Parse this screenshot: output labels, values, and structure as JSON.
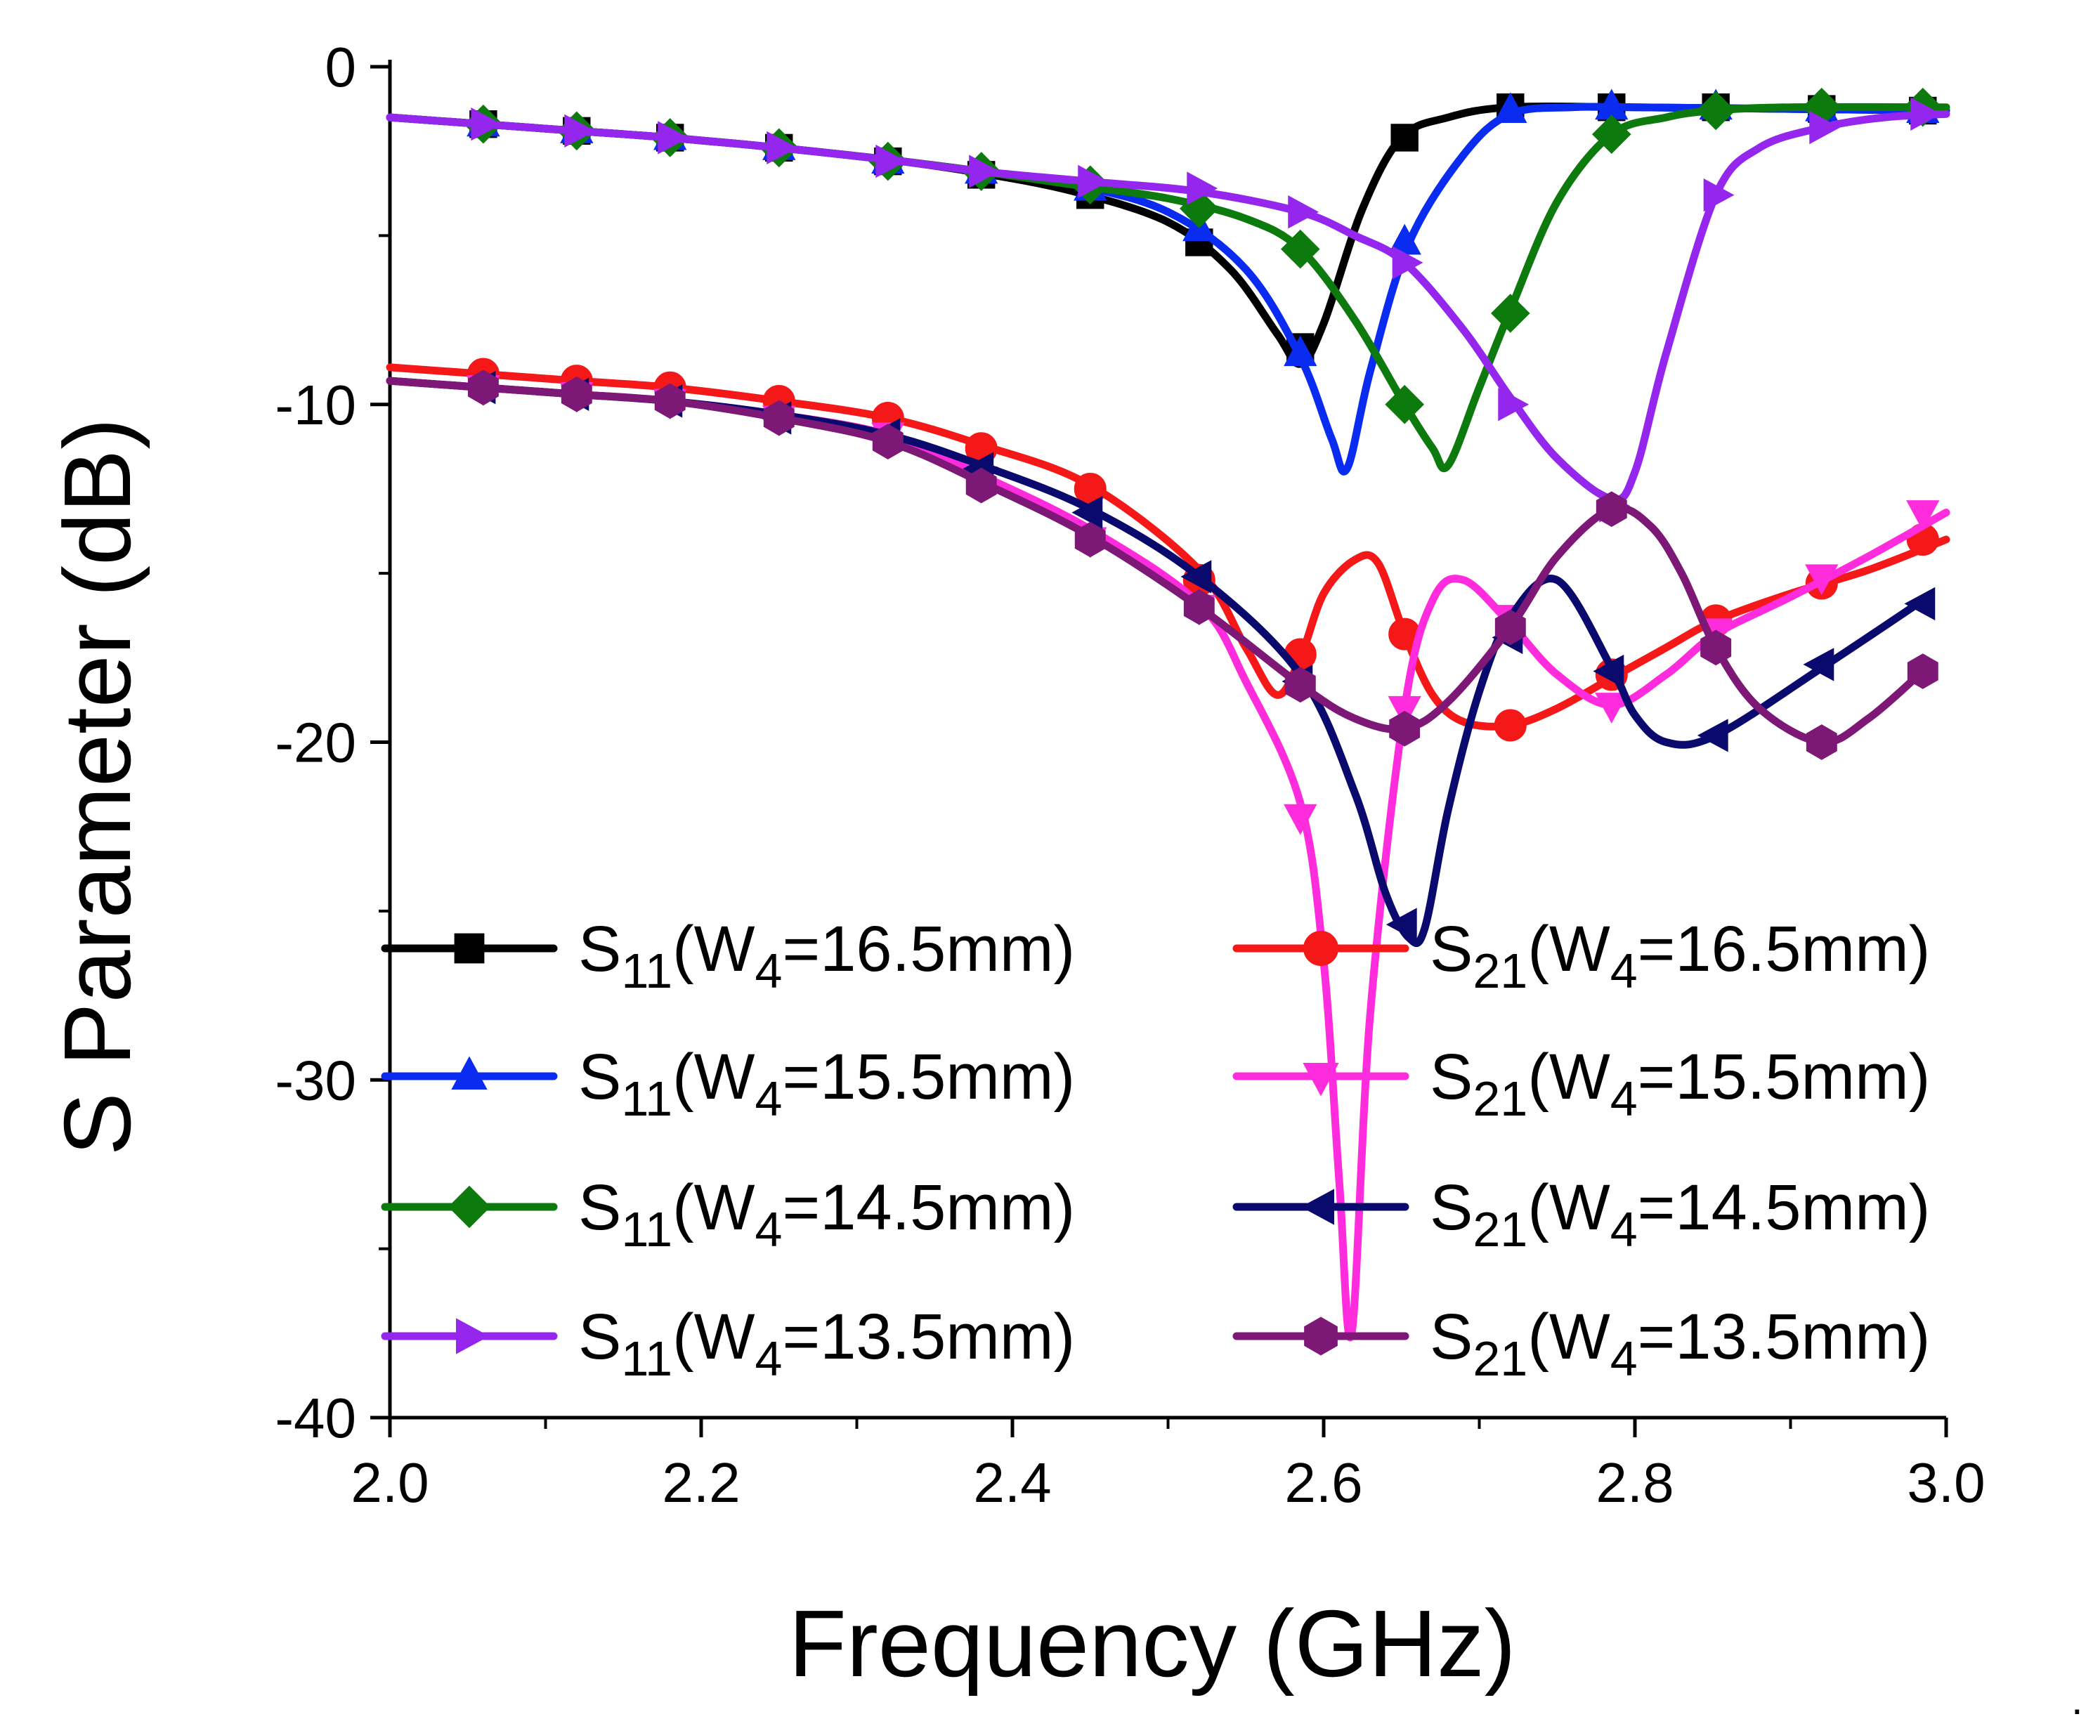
{
  "chart_data": {
    "type": "line",
    "xlabel": "Frequency (GHz)",
    "ylabel": "S Parameter (dB)",
    "xlim": [
      2.0,
      3.0
    ],
    "ylim": [
      -40,
      0
    ],
    "xticks": [
      2.0,
      2.2,
      2.4,
      2.6,
      2.8,
      3.0
    ],
    "xtick_labels": [
      "2.0",
      "2.2",
      "2.4",
      "2.6",
      "2.8",
      "3.0"
    ],
    "yticks": [
      0,
      -10,
      -20,
      -30,
      -40
    ],
    "ytick_labels": [
      "0",
      "-10",
      "-20",
      "-30",
      "-40"
    ],
    "grid": false,
    "legend_position": "bottom-center, two columns",
    "trailing_mark": ".",
    "series": [
      {
        "legend": {
          "main": "S",
          "sub": "11",
          "mid": "(W",
          "sub2": "4",
          "rest": "=16.5mm)"
        },
        "color": "#000000",
        "marker": "square",
        "x": [
          2.0,
          2.06,
          2.12,
          2.18,
          2.25,
          2.32,
          2.38,
          2.44,
          2.5,
          2.54,
          2.57,
          2.585,
          2.6,
          2.625,
          2.65,
          2.68,
          2.72,
          2.8,
          2.9,
          3.0
        ],
        "y": [
          -1.5,
          -1.7,
          -1.9,
          -2.1,
          -2.4,
          -2.75,
          -3.15,
          -3.7,
          -4.6,
          -6.0,
          -7.9,
          -8.8,
          -7.6,
          -4.2,
          -2.1,
          -1.5,
          -1.2,
          -1.2,
          -1.25,
          -1.3
        ],
        "marker_x": [
          2.06,
          2.12,
          2.18,
          2.25,
          2.32,
          2.38,
          2.45,
          2.52,
          2.585,
          2.652,
          2.72,
          2.785,
          2.852,
          2.92,
          2.985
        ],
        "marker_y": [
          -1.7,
          -1.9,
          -2.1,
          -2.4,
          -2.8,
          -3.2,
          -3.8,
          -5.2,
          -8.3,
          -2.1,
          -1.2,
          -1.2,
          -1.2,
          -1.25,
          -1.3
        ]
      },
      {
        "legend": {
          "main": "S",
          "sub": "11",
          "mid": "(W",
          "sub2": "4",
          "rest": "=15.5mm)"
        },
        "color": "#0a2cf0",
        "marker": "triangle-up",
        "x": [
          2.0,
          2.06,
          2.12,
          2.18,
          2.25,
          2.32,
          2.38,
          2.44,
          2.5,
          2.55,
          2.585,
          2.605,
          2.615,
          2.63,
          2.655,
          2.69,
          2.72,
          2.76,
          2.8,
          2.9,
          3.0
        ],
        "y": [
          -1.5,
          -1.7,
          -1.9,
          -2.1,
          -2.4,
          -2.75,
          -3.1,
          -3.5,
          -4.3,
          -6.0,
          -8.6,
          -11.0,
          -11.9,
          -9.0,
          -5.2,
          -2.6,
          -1.4,
          -1.2,
          -1.2,
          -1.25,
          -1.3
        ],
        "marker_x": [
          2.06,
          2.12,
          2.18,
          2.25,
          2.32,
          2.38,
          2.45,
          2.52,
          2.585,
          2.652,
          2.72,
          2.785,
          2.852,
          2.92,
          2.985
        ],
        "marker_y": [
          -1.7,
          -1.9,
          -2.1,
          -2.4,
          -2.8,
          -3.1,
          -3.6,
          -4.8,
          -8.5,
          -5.2,
          -1.3,
          -1.2,
          -1.2,
          -1.25,
          -1.3
        ]
      },
      {
        "legend": {
          "main": "S",
          "sub": "11",
          "mid": "(W",
          "sub2": "4",
          "rest": "=14.5mm)"
        },
        "color": "#0d7a0d",
        "marker": "diamond",
        "x": [
          2.0,
          2.06,
          2.12,
          2.18,
          2.25,
          2.32,
          2.38,
          2.44,
          2.5,
          2.55,
          2.585,
          2.62,
          2.652,
          2.67,
          2.68,
          2.7,
          2.72,
          2.75,
          2.785,
          2.82,
          2.85,
          2.9,
          3.0
        ],
        "y": [
          -1.5,
          -1.7,
          -1.9,
          -2.1,
          -2.4,
          -2.75,
          -3.1,
          -3.5,
          -3.9,
          -4.5,
          -5.4,
          -7.5,
          -10.0,
          -11.3,
          -11.8,
          -9.5,
          -7.2,
          -4.0,
          -2.0,
          -1.5,
          -1.3,
          -1.2,
          -1.2
        ],
        "marker_x": [
          2.06,
          2.12,
          2.18,
          2.25,
          2.32,
          2.38,
          2.45,
          2.52,
          2.585,
          2.652,
          2.72,
          2.785,
          2.852,
          2.92,
          2.985
        ],
        "marker_y": [
          -1.7,
          -1.9,
          -2.1,
          -2.4,
          -2.8,
          -3.1,
          -3.5,
          -4.2,
          -5.4,
          -10.0,
          -7.3,
          -2.0,
          -1.3,
          -1.2,
          -1.2
        ]
      },
      {
        "legend": {
          "main": "S",
          "sub": "11",
          "mid": "(W",
          "sub2": "4",
          "rest": "=13.5mm)"
        },
        "color": "#9526ee",
        "marker": "triangle-right",
        "x": [
          2.0,
          2.06,
          2.12,
          2.18,
          2.25,
          2.32,
          2.38,
          2.45,
          2.52,
          2.585,
          2.62,
          2.652,
          2.69,
          2.72,
          2.75,
          2.785,
          2.8,
          2.82,
          2.852,
          2.88,
          2.92,
          2.96,
          3.0
        ],
        "y": [
          -1.5,
          -1.7,
          -1.9,
          -2.1,
          -2.4,
          -2.75,
          -3.1,
          -3.4,
          -3.7,
          -4.3,
          -5.0,
          -5.8,
          -7.8,
          -9.8,
          -11.6,
          -12.8,
          -12.0,
          -8.5,
          -3.8,
          -2.4,
          -1.8,
          -1.5,
          -1.4
        ],
        "marker_x": [
          2.06,
          2.12,
          2.18,
          2.25,
          2.32,
          2.38,
          2.45,
          2.52,
          2.585,
          2.652,
          2.72,
          2.785,
          2.852,
          2.92,
          2.985
        ],
        "marker_y": [
          -1.7,
          -1.9,
          -2.1,
          -2.4,
          -2.8,
          -3.1,
          -3.4,
          -3.6,
          -4.3,
          -5.8,
          -10.0,
          -13.0,
          -3.8,
          -1.8,
          -1.4
        ]
      },
      {
        "legend": {
          "main": "S",
          "sub": "21",
          "mid": "(W",
          "sub2": "4",
          "rest": "=16.5mm)"
        },
        "color": "#f41818",
        "marker": "circle",
        "x": [
          2.0,
          2.06,
          2.12,
          2.18,
          2.25,
          2.32,
          2.38,
          2.45,
          2.52,
          2.55,
          2.57,
          2.585,
          2.6,
          2.62,
          2.635,
          2.652,
          2.67,
          2.69,
          2.72,
          2.75,
          2.785,
          2.82,
          2.852,
          2.9,
          2.95,
          3.0
        ],
        "y": [
          -8.9,
          -9.1,
          -9.3,
          -9.5,
          -9.9,
          -10.4,
          -11.2,
          -12.4,
          -14.9,
          -17.2,
          -18.6,
          -17.5,
          -15.6,
          -14.6,
          -14.7,
          -16.8,
          -18.6,
          -19.4,
          -19.5,
          -19.0,
          -18.1,
          -17.2,
          -16.4,
          -15.6,
          -14.9,
          -14.0
        ],
        "marker_x": [
          2.06,
          2.12,
          2.18,
          2.25,
          2.32,
          2.38,
          2.45,
          2.52,
          2.585,
          2.652,
          2.72,
          2.785,
          2.852,
          2.92,
          2.985
        ],
        "marker_y": [
          -9.1,
          -9.3,
          -9.5,
          -9.9,
          -10.4,
          -11.3,
          -12.5,
          -15.2,
          -17.4,
          -16.8,
          -19.5,
          -18.0,
          -16.4,
          -15.3,
          -14.0
        ]
      },
      {
        "legend": {
          "main": "S",
          "sub": "21",
          "mid": "(W",
          "sub2": "4",
          "rest": "=15.5mm)"
        },
        "color": "#ff2cde",
        "marker": "triangle-down",
        "x": [
          2.0,
          2.06,
          2.12,
          2.18,
          2.25,
          2.32,
          2.38,
          2.45,
          2.52,
          2.55,
          2.585,
          2.6,
          2.61,
          2.618,
          2.63,
          2.652,
          2.67,
          2.69,
          2.72,
          2.75,
          2.785,
          2.82,
          2.852,
          2.9,
          2.95,
          3.0
        ],
        "y": [
          -9.3,
          -9.5,
          -9.7,
          -9.9,
          -10.3,
          -10.9,
          -12.1,
          -13.7,
          -15.9,
          -18.2,
          -21.8,
          -26.5,
          -33.0,
          -37.5,
          -28.0,
          -19.0,
          -15.8,
          -15.2,
          -16.5,
          -18.0,
          -18.9,
          -18.0,
          -16.8,
          -15.7,
          -14.5,
          -13.2
        ],
        "marker_x": [
          2.06,
          2.12,
          2.18,
          2.25,
          2.32,
          2.38,
          2.45,
          2.52,
          2.585,
          2.652,
          2.72,
          2.785,
          2.852,
          2.92,
          2.985
        ],
        "marker_y": [
          -9.5,
          -9.7,
          -9.9,
          -10.4,
          -10.9,
          -12.2,
          -14.0,
          -16.0,
          -22.2,
          -19.0,
          -16.3,
          -18.9,
          -16.7,
          -15.1,
          -13.2
        ]
      },
      {
        "legend": {
          "main": "S",
          "sub": "21",
          "mid": "(W",
          "sub2": "4",
          "rest": "=14.5mm)"
        },
        "color": "#0a0a6e",
        "marker": "triangle-left",
        "x": [
          2.0,
          2.06,
          2.12,
          2.18,
          2.25,
          2.32,
          2.38,
          2.45,
          2.52,
          2.585,
          2.62,
          2.64,
          2.655,
          2.665,
          2.68,
          2.7,
          2.72,
          2.75,
          2.785,
          2.8,
          2.82,
          2.852,
          2.92,
          2.985
        ],
        "y": [
          -9.3,
          -9.5,
          -9.7,
          -9.9,
          -10.3,
          -10.9,
          -11.8,
          -13.1,
          -15.1,
          -18.0,
          -21.5,
          -24.5,
          -25.8,
          -25.5,
          -22.0,
          -18.5,
          -16.3,
          -15.2,
          -17.8,
          -19.2,
          -20.0,
          -19.8,
          -17.8,
          -15.8
        ],
        "marker_x": [
          2.06,
          2.12,
          2.18,
          2.25,
          2.32,
          2.38,
          2.45,
          2.52,
          2.585,
          2.652,
          2.72,
          2.785,
          2.852,
          2.92,
          2.985
        ],
        "marker_y": [
          -9.5,
          -9.7,
          -9.9,
          -10.4,
          -10.9,
          -11.9,
          -13.2,
          -15.1,
          -18.2,
          -25.4,
          -16.9,
          -17.9,
          -19.8,
          -17.7,
          -15.9
        ]
      },
      {
        "legend": {
          "main": "S",
          "sub": "21",
          "mid": "(W",
          "sub2": "4",
          "rest": "=13.5mm)"
        },
        "color": "#7d1877",
        "marker": "hexagon",
        "x": [
          2.0,
          2.06,
          2.12,
          2.18,
          2.25,
          2.32,
          2.38,
          2.45,
          2.52,
          2.585,
          2.62,
          2.652,
          2.68,
          2.72,
          2.75,
          2.785,
          2.81,
          2.83,
          2.852,
          2.88,
          2.92,
          2.95,
          2.985
        ],
        "y": [
          -9.3,
          -9.5,
          -9.7,
          -9.9,
          -10.4,
          -11.1,
          -12.3,
          -13.9,
          -16.0,
          -18.3,
          -19.3,
          -19.6,
          -18.8,
          -16.6,
          -14.5,
          -13.1,
          -13.6,
          -15.0,
          -17.2,
          -19.0,
          -20.0,
          -19.3,
          -17.9
        ],
        "marker_x": [
          2.06,
          2.12,
          2.18,
          2.25,
          2.32,
          2.38,
          2.45,
          2.52,
          2.585,
          2.652,
          2.72,
          2.785,
          2.852,
          2.92,
          2.985
        ],
        "marker_y": [
          -9.5,
          -9.7,
          -9.9,
          -10.4,
          -11.1,
          -12.4,
          -14.0,
          -16.0,
          -18.3,
          -19.6,
          -16.6,
          -13.1,
          -17.2,
          -20.0,
          -17.9
        ]
      }
    ]
  }
}
